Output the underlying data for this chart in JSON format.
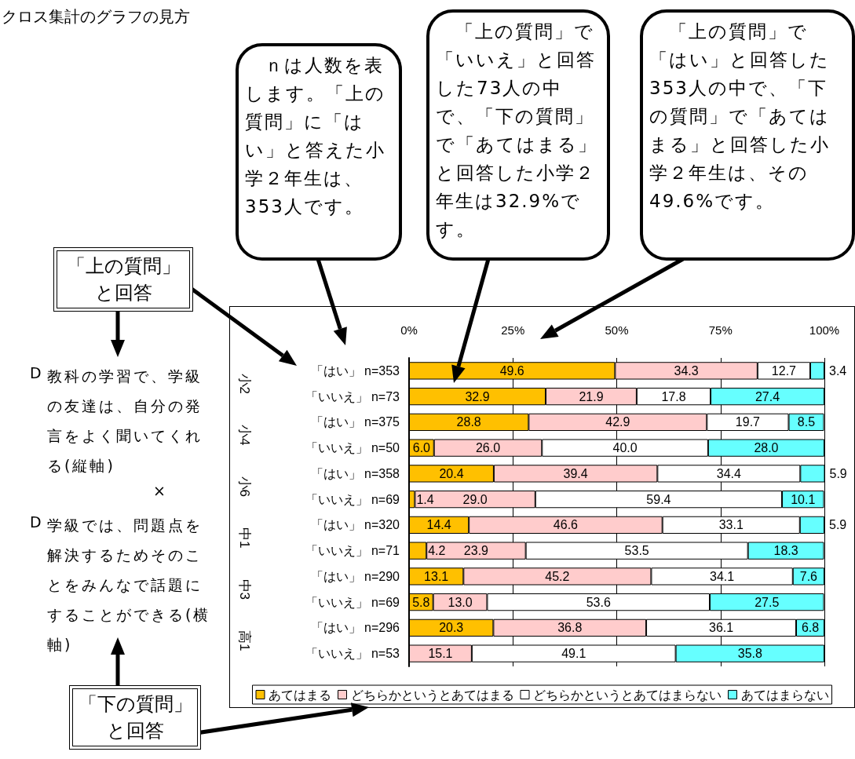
{
  "chart_data": {
    "type": "bar",
    "orientation": "horizontal",
    "stacked": true,
    "title": "クロス集計のグラフの見方",
    "categories": [
      "「はい」 n=353",
      "「いいえ」 n=73",
      "「はい」 n=375",
      "「いいえ」 n=50",
      "「はい」 n=358",
      "「いいえ」 n=69",
      "「はい」 n=320",
      "「いいえ」 n=71",
      "「はい」 n=290",
      "「いいえ」 n=69",
      "「はい」 n=296",
      "「いいえ」 n=53"
    ],
    "series": [
      {
        "name": "あてはまる",
        "color": "#ffc000",
        "values": [
          49.6,
          32.9,
          28.8,
          6.0,
          20.4,
          1.4,
          14.4,
          4.2,
          13.1,
          5.8,
          20.3,
          0
        ],
        "value_labels": [
          "49.6",
          "32.9",
          "28.8",
          "6.0",
          "20.4",
          "1.4",
          "14.4",
          "4.2",
          "13.1",
          "5.8",
          "20.3",
          null
        ]
      },
      {
        "name": "どちらかというとあてはまる",
        "color": "#ffcccc",
        "values": [
          34.3,
          21.9,
          42.9,
          26.0,
          39.4,
          29.0,
          46.6,
          23.9,
          45.2,
          13.0,
          36.8,
          15.1
        ],
        "value_labels": [
          "34.3",
          "21.9",
          "42.9",
          "26.0",
          "39.4",
          "29.0",
          "46.6",
          "23.9",
          "45.2",
          "13.0",
          "36.8",
          "15.1"
        ]
      },
      {
        "name": "どちらかというとあてはまらない",
        "color": "#ffffff",
        "values": [
          12.7,
          17.8,
          19.7,
          40.0,
          34.4,
          59.4,
          33.1,
          53.5,
          34.1,
          53.6,
          36.1,
          49.1
        ],
        "value_labels": [
          "12.7",
          "17.8",
          "19.7",
          "40.0",
          "34.4",
          "59.4",
          "33.1",
          "53.5",
          "34.1",
          "53.6",
          "36.1",
          "49.1"
        ]
      },
      {
        "name": "あてはまらない",
        "color": "#66ffff",
        "values": [
          3.4,
          27.4,
          8.5,
          28.0,
          5.9,
          10.1,
          5.9,
          18.3,
          7.6,
          27.5,
          6.8,
          35.8
        ],
        "value_labels": [
          "3.4",
          "27.4",
          "8.5",
          "28.0",
          "5.9",
          "10.1",
          "5.9",
          "18.3",
          "7.6",
          "27.5",
          "6.8",
          "35.8"
        ]
      }
    ],
    "xlim": [
      0,
      100
    ],
    "xticks": [
      {
        "value": 0,
        "label": "0%"
      },
      {
        "value": 25,
        "label": "25%"
      },
      {
        "value": 50,
        "label": "50%"
      },
      {
        "value": 75,
        "label": "75%"
      },
      {
        "value": 100,
        "label": "100%"
      }
    ],
    "grid": "x",
    "legend": "bottom",
    "annotations": [
      "　ｎは人数を表します。「上の質問」に「はい」と答えた小学２年生は、353人です。",
      "　「上の質問」で「いいえ」と回答した73人の中で、「下の質問」で「あてはまる」と回答した小学２年生は32.9%です。",
      "　「上の質問」で「はい」と回答した353人の中で、「下の質問」で「あてはまる」と回答した小学２年生は、その49.6%です。",
      "「上の質問」と回答",
      "D",
      "教科の学習で、学級の友達は、自分の発言をよく聞いてくれる(縦軸)",
      "×",
      "D",
      "学級では、問題点を解決するためそのことをみんなで話題にすることができる(横軸)",
      "「下の質問」と回答",
      "小2",
      "小4",
      "小6",
      "中1",
      "中3",
      "高1"
    ]
  }
}
